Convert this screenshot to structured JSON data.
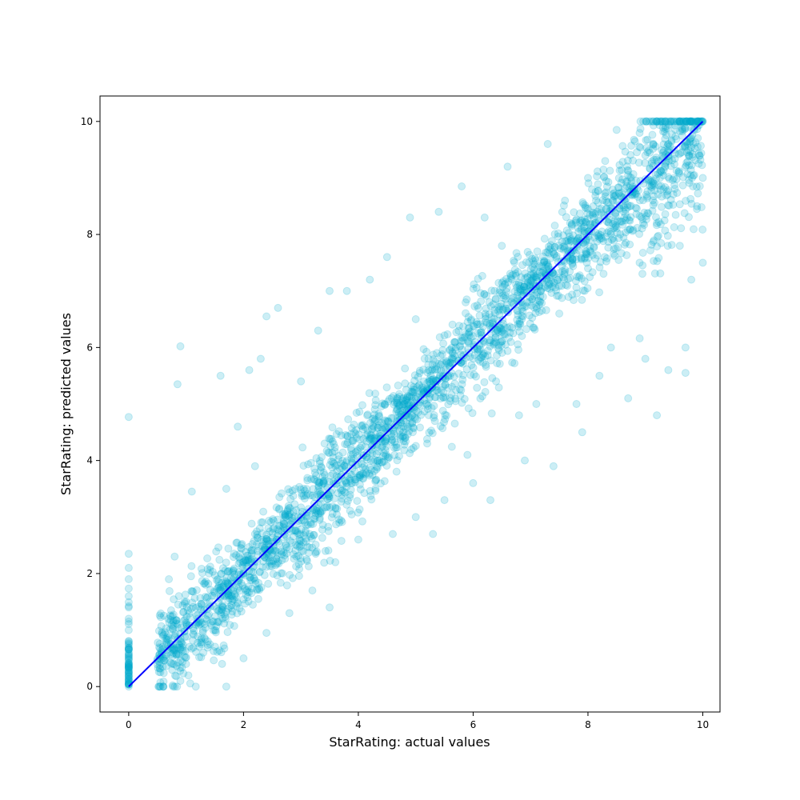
{
  "chart_data": {
    "type": "scatter",
    "title": "",
    "xlabel": "StarRating: actual values",
    "ylabel": "StarRating: predicted values",
    "xlim": [
      -0.5,
      10.3
    ],
    "ylim": [
      -0.45,
      10.45
    ],
    "x_ticks": [
      0,
      2,
      4,
      6,
      8,
      10
    ],
    "y_ticks": [
      0,
      2,
      4,
      6,
      8,
      10
    ],
    "grid": false,
    "legend": "none",
    "colors": {
      "points": "#00aacc",
      "reference_line": "#0000ff"
    },
    "point_alpha": 0.2,
    "reference_line": {
      "x": [
        0,
        10
      ],
      "y": [
        0,
        10
      ]
    },
    "series": [
      {
        "points": [
          [
            0,
            0.0
          ],
          [
            0,
            0.2
          ],
          [
            0,
            0.4
          ],
          [
            0,
            0.6
          ],
          [
            0,
            0.8
          ],
          [
            0,
            1.0
          ],
          [
            0,
            1.2
          ],
          [
            0,
            1.4
          ],
          [
            0,
            1.6
          ],
          [
            0,
            1.9
          ],
          [
            0,
            2.1
          ],
          [
            0,
            2.35
          ],
          [
            0,
            4.77
          ],
          [
            0.6,
            0.0
          ],
          [
            0.6,
            0.5
          ],
          [
            0.7,
            1.9
          ],
          [
            0.8,
            0.9
          ],
          [
            0.8,
            2.3
          ],
          [
            0.9,
            6.02
          ],
          [
            0.85,
            5.35
          ],
          [
            0.9,
            0.1
          ],
          [
            1.0,
            0.4
          ],
          [
            1.0,
            1.5
          ],
          [
            1.1,
            3.45
          ],
          [
            1.2,
            1.2
          ],
          [
            1.3,
            0.6
          ],
          [
            1.4,
            2.0
          ],
          [
            1.5,
            1.0
          ],
          [
            1.6,
            5.5
          ],
          [
            1.7,
            0.0
          ],
          [
            1.7,
            3.5
          ],
          [
            1.8,
            1.6
          ],
          [
            1.9,
            4.6
          ],
          [
            2.0,
            0.5
          ],
          [
            2.0,
            2.2
          ],
          [
            2.1,
            5.6
          ],
          [
            2.2,
            3.9
          ],
          [
            2.3,
            5.8
          ],
          [
            2.4,
            0.95
          ],
          [
            2.4,
            6.55
          ],
          [
            2.6,
            6.7
          ],
          [
            2.6,
            2.7
          ],
          [
            2.8,
            1.3
          ],
          [
            3.0,
            3.0
          ],
          [
            3.0,
            5.4
          ],
          [
            3.2,
            1.7
          ],
          [
            3.3,
            6.3
          ],
          [
            3.4,
            3.6
          ],
          [
            3.5,
            7.0
          ],
          [
            3.5,
            1.4
          ],
          [
            3.6,
            2.2
          ],
          [
            3.8,
            7.0
          ],
          [
            3.8,
            4.0
          ],
          [
            4.0,
            4.2
          ],
          [
            4.0,
            2.6
          ],
          [
            4.2,
            7.2
          ],
          [
            4.3,
            3.5
          ],
          [
            4.5,
            7.6
          ],
          [
            4.6,
            2.7
          ],
          [
            4.8,
            5.0
          ],
          [
            4.9,
            8.3
          ],
          [
            5.0,
            3.0
          ],
          [
            5.0,
            6.5
          ],
          [
            5.2,
            4.3
          ],
          [
            5.3,
            2.7
          ],
          [
            5.4,
            8.4
          ],
          [
            5.5,
            3.3
          ],
          [
            5.6,
            5.5
          ],
          [
            5.8,
            8.85
          ],
          [
            5.9,
            4.1
          ],
          [
            6.0,
            6.2
          ],
          [
            6.0,
            3.6
          ],
          [
            6.2,
            8.3
          ],
          [
            6.3,
            3.3
          ],
          [
            6.4,
            5.4
          ],
          [
            6.5,
            7.8
          ],
          [
            6.6,
            9.2
          ],
          [
            6.8,
            4.8
          ],
          [
            6.9,
            4.0
          ],
          [
            7.0,
            7.0
          ],
          [
            7.1,
            5.0
          ],
          [
            7.3,
            9.6
          ],
          [
            7.4,
            3.9
          ],
          [
            7.5,
            6.6
          ],
          [
            7.6,
            8.6
          ],
          [
            7.8,
            5.0
          ],
          [
            7.9,
            4.5
          ],
          [
            8.0,
            7.4
          ],
          [
            8.0,
            9.0
          ],
          [
            8.2,
            5.5
          ],
          [
            8.3,
            9.3
          ],
          [
            8.4,
            6.0
          ],
          [
            8.5,
            9.85
          ],
          [
            8.7,
            5.1
          ],
          [
            8.8,
            8.8
          ],
          [
            8.9,
            7.5
          ],
          [
            9.0,
            5.8
          ],
          [
            9.0,
            9.4
          ],
          [
            9.2,
            4.8
          ],
          [
            9.2,
            8.2
          ],
          [
            9.3,
            10.0
          ],
          [
            9.4,
            5.6
          ],
          [
            9.5,
            9.5
          ],
          [
            9.6,
            7.8
          ],
          [
            9.7,
            5.55
          ],
          [
            9.7,
            6.0
          ],
          [
            9.8,
            7.2
          ],
          [
            9.9,
            8.5
          ],
          [
            10.0,
            10.0
          ],
          [
            10.0,
            7.5
          ],
          [
            10.0,
            9.0
          ]
        ]
      }
    ]
  }
}
